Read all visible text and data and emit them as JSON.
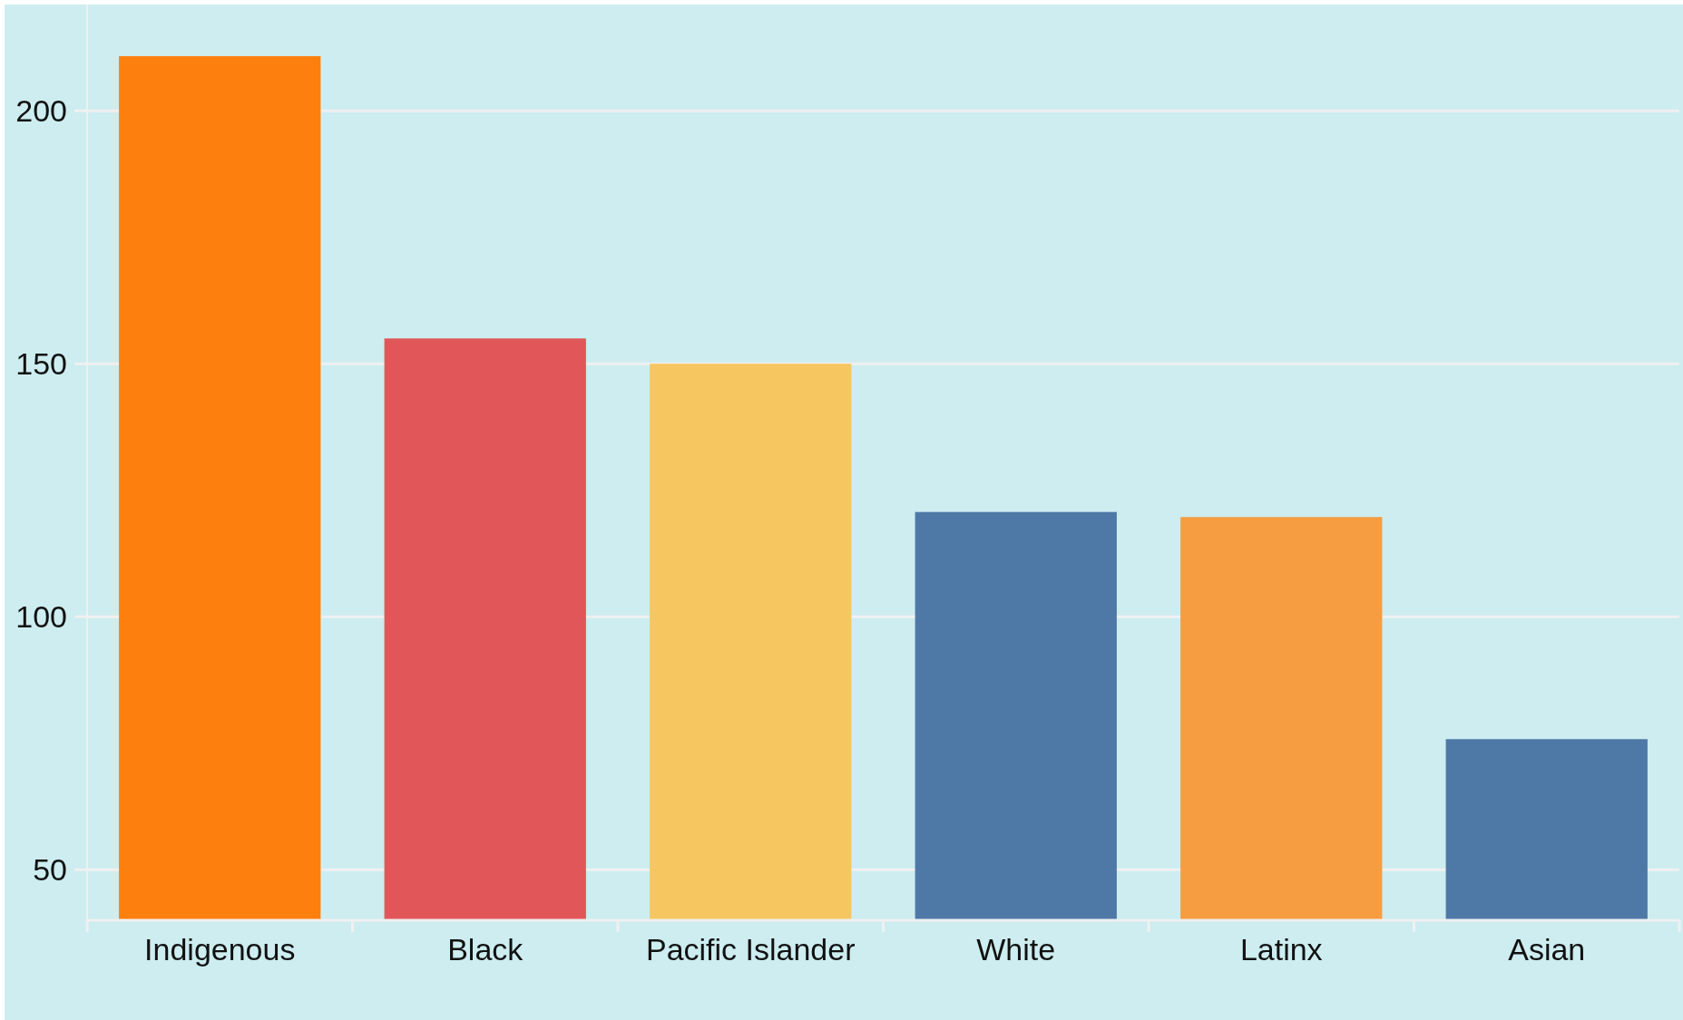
{
  "chart_data": {
    "type": "bar",
    "categories": [
      "Indigenous",
      "Black",
      "Pacific Islander",
      "White",
      "Latinx",
      "Asian"
    ],
    "values": [
      210.8,
      155,
      150,
      120.7,
      119.7,
      75.8
    ],
    "colors": [
      "#fd7f0e",
      "#e15759",
      "#f6c761",
      "#4e79a7",
      "#f69d41",
      "#4e79a7"
    ],
    "ylim": [
      40,
      221
    ],
    "yticks": [
      50,
      100,
      150,
      200
    ],
    "grid": "y"
  }
}
